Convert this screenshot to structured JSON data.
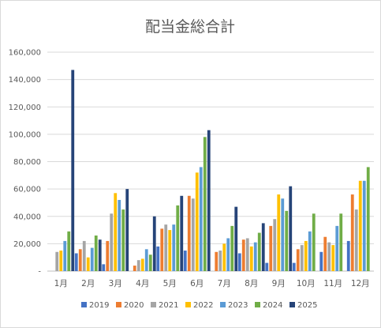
{
  "chart_data": {
    "type": "bar",
    "title": "配当金総合計",
    "xlabel": "",
    "ylabel": "",
    "ylim": [
      0,
      160000
    ],
    "yticks": [
      0,
      20000,
      40000,
      60000,
      80000,
      100000,
      120000,
      140000,
      160000
    ],
    "ytick_labels": [
      "-",
      "20,000",
      "40,000",
      "60,000",
      "80,000",
      "100,000",
      "120,000",
      "140,000",
      "160,000"
    ],
    "grid": true,
    "legend_position": "bottom",
    "categories": [
      "1月",
      "2月",
      "3月",
      "4月",
      "5月",
      "6月",
      "7月",
      "8月",
      "9月",
      "10月",
      "11月",
      "12月"
    ],
    "series": [
      {
        "name": "2019",
        "color": "#4472C4",
        "values": [
          0,
          13000,
          5000,
          0,
          18000,
          15000,
          0,
          13000,
          6000,
          6000,
          14000,
          22000
        ]
      },
      {
        "name": "2020",
        "color": "#ED7D31",
        "values": [
          0,
          16000,
          22000,
          4000,
          31000,
          55000,
          14000,
          23000,
          33000,
          16000,
          25000,
          56000
        ]
      },
      {
        "name": "2021",
        "color": "#A5A5A5",
        "values": [
          14000,
          22000,
          42000,
          8000,
          34000,
          53000,
          15000,
          24000,
          38000,
          19000,
          21000,
          45000
        ]
      },
      {
        "name": "2022",
        "color": "#FFC000",
        "values": [
          15000,
          10000,
          57000,
          9000,
          30000,
          72000,
          20000,
          18000,
          56000,
          22000,
          19000,
          66000
        ]
      },
      {
        "name": "2023",
        "color": "#5B9BD5",
        "values": [
          22000,
          17000,
          52000,
          16000,
          34000,
          76000,
          24000,
          21000,
          53000,
          29000,
          33000,
          66000
        ]
      },
      {
        "name": "2024",
        "color": "#70AD47",
        "values": [
          29000,
          26000,
          45000,
          12000,
          48000,
          98000,
          33000,
          28000,
          44000,
          42000,
          42000,
          76000
        ]
      },
      {
        "name": "2025",
        "color": "#264478",
        "values": [
          147000,
          23000,
          60000,
          40000,
          55000,
          103000,
          47000,
          35000,
          62000,
          0,
          0,
          0
        ]
      }
    ]
  }
}
